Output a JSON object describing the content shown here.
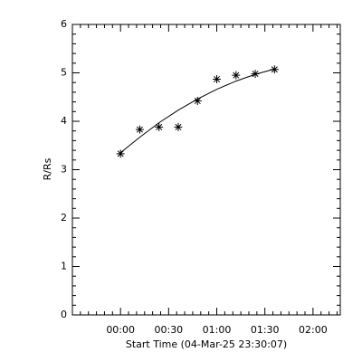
{
  "chart_data": {
    "type": "scatter",
    "xlabel": "Start Time (04-Mar-25 23:30:07)",
    "ylabel": "R/Rs",
    "xlim": [
      -30,
      137
    ],
    "ylim": [
      0,
      6
    ],
    "xticks": [
      {
        "value": 0,
        "label": "00:00"
      },
      {
        "value": 30,
        "label": "00:30"
      },
      {
        "value": 60,
        "label": "01:00"
      },
      {
        "value": 90,
        "label": "01:30"
      },
      {
        "value": 120,
        "label": "02:00"
      }
    ],
    "yticks": [
      0,
      1,
      2,
      3,
      4,
      5,
      6
    ],
    "series": [
      {
        "type": "scatter",
        "color": "#000000",
        "x": [
          0,
          12,
          24,
          36,
          48,
          60,
          72,
          84,
          96
        ],
        "values": [
          3.33,
          3.83,
          3.88,
          3.88,
          4.42,
          4.87,
          4.95,
          4.98,
          5.07
        ]
      },
      {
        "type": "line",
        "color": "#000000",
        "x": [
          0,
          12,
          24,
          36,
          48,
          60,
          72,
          84,
          96
        ],
        "values": [
          3.35,
          3.67,
          3.97,
          4.23,
          4.46,
          4.66,
          4.83,
          4.97,
          5.08
        ]
      }
    ]
  }
}
